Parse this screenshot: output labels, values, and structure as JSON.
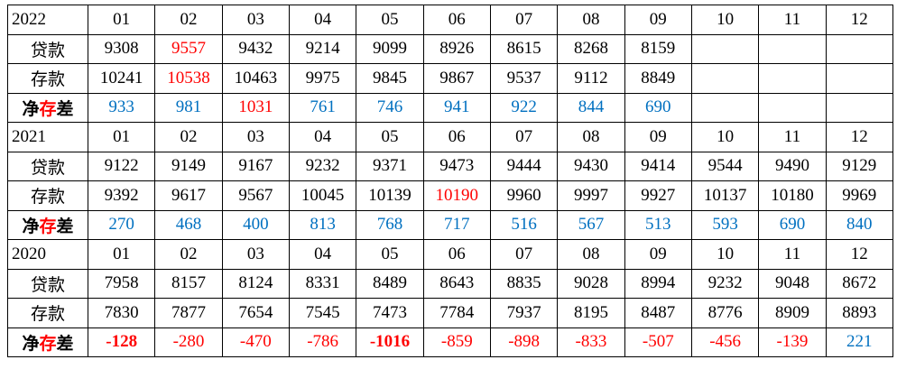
{
  "sections": [
    {
      "year": 2022,
      "months": [
        "01",
        "02",
        "03",
        "04",
        "05",
        "06",
        "07",
        "08",
        "09",
        "10",
        "11",
        "12"
      ],
      "rows": [
        {
          "label": "贷款",
          "values": [
            9308,
            9557,
            9432,
            9214,
            9099,
            8926,
            8615,
            8268,
            8159
          ]
        },
        {
          "label": "存款",
          "values": [
            10241,
            10538,
            10463,
            9975,
            9845,
            9867,
            9537,
            9112,
            8849
          ]
        },
        {
          "label": "净存差",
          "values": [
            933,
            981,
            1031,
            761,
            746,
            941,
            922,
            844,
            690
          ]
        }
      ]
    },
    {
      "year": 2021,
      "months": [
        "01",
        "02",
        "03",
        "04",
        "05",
        "06",
        "07",
        "08",
        "09",
        "10",
        "11",
        "12"
      ],
      "rows": [
        {
          "label": "贷款",
          "values": [
            9122,
            9149,
            9167,
            9232,
            9371,
            9473,
            9444,
            9430,
            9414,
            9544,
            9490,
            9129
          ]
        },
        {
          "label": "存款",
          "values": [
            9392,
            9617,
            9567,
            10045,
            10139,
            10190,
            9960,
            9997,
            9927,
            10137,
            10180,
            9969
          ]
        },
        {
          "label": "净存差",
          "values": [
            270,
            468,
            400,
            813,
            768,
            717,
            516,
            567,
            513,
            593,
            690,
            840
          ]
        }
      ]
    },
    {
      "year": 2020,
      "months": [
        "01",
        "02",
        "03",
        "04",
        "05",
        "06",
        "07",
        "08",
        "09",
        "10",
        "11",
        "12"
      ],
      "rows": [
        {
          "label": "贷款",
          "values": [
            7958,
            8157,
            8124,
            8331,
            8489,
            8643,
            8835,
            9028,
            8994,
            9232,
            9048,
            8672
          ]
        },
        {
          "label": "存款",
          "values": [
            7830,
            7877,
            7654,
            7545,
            7473,
            7784,
            7937,
            8195,
            8487,
            8776,
            8909,
            8893
          ]
        },
        {
          "label": "净存差",
          "values": [
            -128,
            -280,
            -470,
            -786,
            -1016,
            -859,
            -898,
            -833,
            -507,
            -456,
            -139,
            221
          ]
        }
      ]
    }
  ]
}
